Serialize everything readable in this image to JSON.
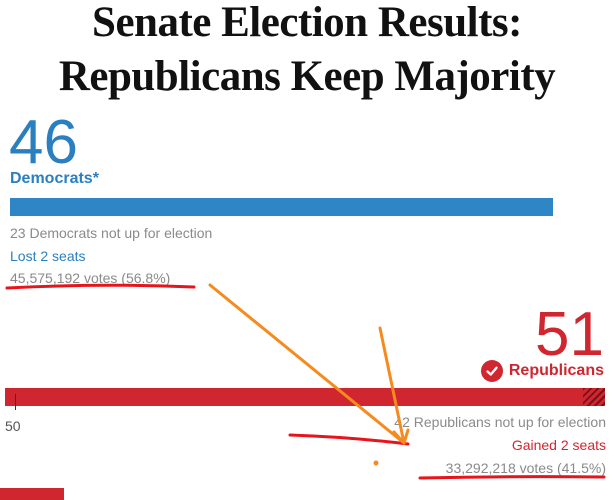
{
  "headline": {
    "line1": "Senate Election Results:",
    "line2": "Republicans Keep Majority"
  },
  "democrats": {
    "seats": "46",
    "name": "Democrats*",
    "not_up": "23 Democrats not up for election",
    "change": "Lost 2 seats",
    "votes": "45,575,192 votes (56.8%)",
    "color": "#2f86c6"
  },
  "republicans": {
    "seats": "51",
    "name": "Republicans",
    "not_up": "42 Republicans not up for election",
    "change": "Gained 2 seats",
    "votes": "33,292,218 votes (41.5%)",
    "color": "#d0262f",
    "icon": "check-circle-icon"
  },
  "majority_marker": "50",
  "annotation_colors": {
    "underline": "#e8141c",
    "arrow": "#f58a1f"
  }
}
